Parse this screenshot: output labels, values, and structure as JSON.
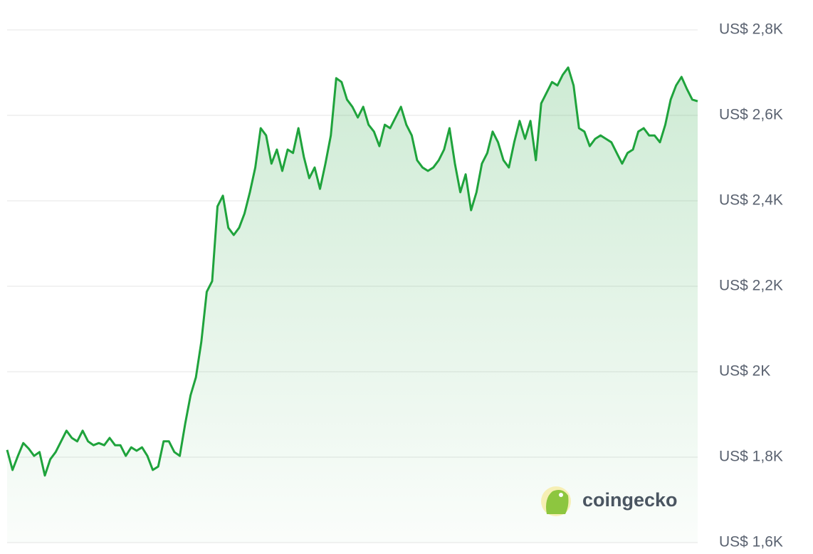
{
  "chart_data": {
    "type": "area",
    "watermark": "coingecko",
    "color": "#1fa33c",
    "values": [
      1817,
      1770,
      1803,
      1833,
      1820,
      1803,
      1812,
      1757,
      1795,
      1812,
      1837,
      1862,
      1845,
      1837,
      1862,
      1837,
      1828,
      1833,
      1828,
      1845,
      1828,
      1828,
      1803,
      1823,
      1815,
      1823,
      1803,
      1770,
      1778,
      1837,
      1837,
      1812,
      1803,
      1878,
      1945,
      1987,
      2070,
      2187,
      2212,
      2387,
      2412,
      2337,
      2320,
      2337,
      2370,
      2420,
      2478,
      2570,
      2553,
      2487,
      2520,
      2470,
      2520,
      2512,
      2570,
      2503,
      2453,
      2478,
      2428,
      2487,
      2553,
      2687,
      2678,
      2637,
      2620,
      2595,
      2620,
      2578,
      2562,
      2528,
      2578,
      2570,
      2595,
      2620,
      2578,
      2553,
      2495,
      2478,
      2470,
      2478,
      2495,
      2520,
      2570,
      2487,
      2420,
      2462,
      2378,
      2420,
      2487,
      2512,
      2562,
      2537,
      2495,
      2478,
      2537,
      2587,
      2545,
      2587,
      2495,
      2628,
      2653,
      2678,
      2670,
      2695,
      2712,
      2670,
      2570,
      2562,
      2528,
      2545,
      2553,
      2545,
      2537,
      2512,
      2487,
      2512,
      2520,
      2562,
      2570,
      2553,
      2553,
      2537,
      2578,
      2637,
      2670,
      2690,
      2662,
      2637,
      2633
    ],
    "ylim": [
      1600,
      2800
    ],
    "yticks": [
      {
        "value": 1600,
        "label": "US$ 1,6K"
      },
      {
        "value": 1800,
        "label": "US$ 1,8K"
      },
      {
        "value": 2000,
        "label": "US$ 2K"
      },
      {
        "value": 2200,
        "label": "US$ 2,2K"
      },
      {
        "value": 2400,
        "label": "US$ 2,4K"
      },
      {
        "value": 2600,
        "label": "US$ 2,6K"
      },
      {
        "value": 2800,
        "label": "US$ 2,8K"
      }
    ],
    "grid": true
  }
}
